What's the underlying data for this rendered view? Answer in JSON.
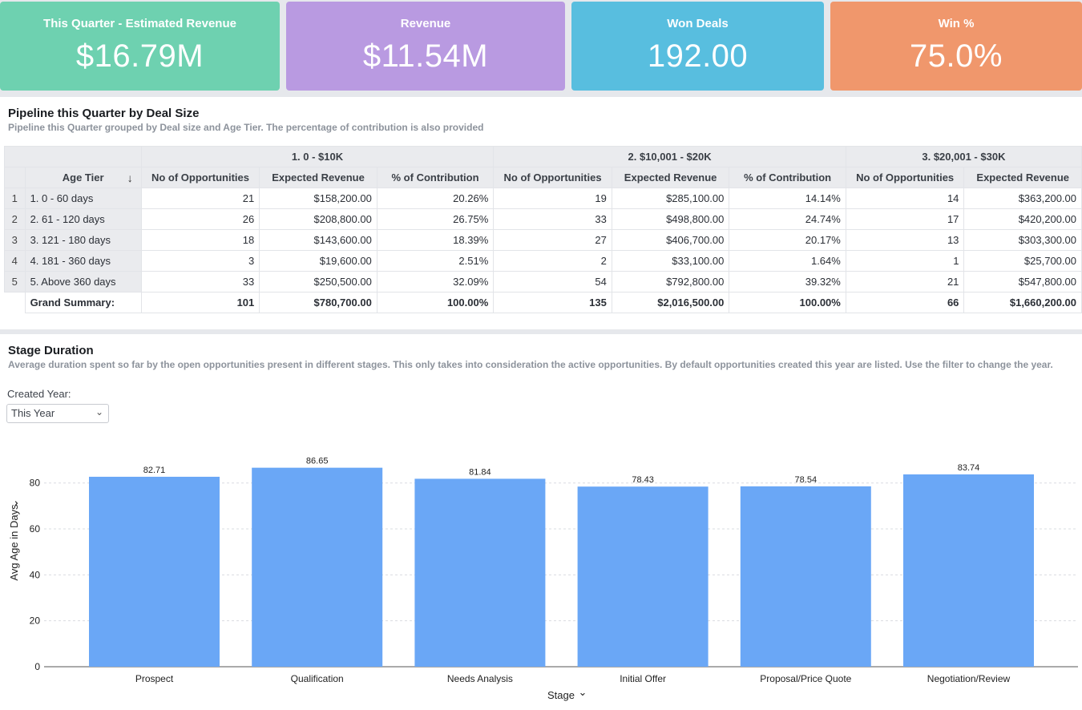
{
  "kpis": [
    {
      "label": "This Quarter - Estimated Revenue",
      "value": "$16.79M",
      "color": "#6ed1b0"
    },
    {
      "label": "Revenue",
      "value": "$11.54M",
      "color": "#b99ae1"
    },
    {
      "label": "Won Deals",
      "value": "192.00",
      "color": "#58bedf"
    },
    {
      "label": "Win %",
      "value": "75.0%",
      "color": "#f0976c"
    }
  ],
  "pipeline": {
    "title": "Pipeline this Quarter by Deal Size",
    "subtitle": "Pipeline this Quarter grouped by Deal size and Age Tier. The percentage of contribution is also provided",
    "row_header": "Age Tier",
    "groups": [
      "1. 0 - $10K",
      "2. $10,001 - $20K",
      "3. $20,001 - $30K"
    ],
    "columns": [
      "No of Opportunities",
      "Expected Revenue",
      "% of Contribution"
    ],
    "rows": [
      {
        "num": "1",
        "tier": "1. 0 - 60 days",
        "cells": [
          "21",
          "$158,200.00",
          "20.26%",
          "19",
          "$285,100.00",
          "14.14%",
          "14",
          "$363,200.00"
        ]
      },
      {
        "num": "2",
        "tier": "2. 61 - 120 days",
        "cells": [
          "26",
          "$208,800.00",
          "26.75%",
          "33",
          "$498,800.00",
          "24.74%",
          "17",
          "$420,200.00"
        ]
      },
      {
        "num": "3",
        "tier": "3. 121 - 180 days",
        "cells": [
          "18",
          "$143,600.00",
          "18.39%",
          "27",
          "$406,700.00",
          "20.17%",
          "13",
          "$303,300.00"
        ]
      },
      {
        "num": "4",
        "tier": "4. 181 - 360 days",
        "cells": [
          "3",
          "$19,600.00",
          "2.51%",
          "2",
          "$33,100.00",
          "1.64%",
          "1",
          "$25,700.00"
        ]
      },
      {
        "num": "5",
        "tier": "5. Above 360 days",
        "cells": [
          "33",
          "$250,500.00",
          "32.09%",
          "54",
          "$792,800.00",
          "39.32%",
          "21",
          "$547,800.00"
        ]
      }
    ],
    "summary": {
      "label": "Grand Summary:",
      "cells": [
        "101",
        "$780,700.00",
        "100.00%",
        "135",
        "$2,016,500.00",
        "100.00%",
        "66",
        "$1,660,200.00"
      ]
    }
  },
  "stage": {
    "title": "Stage Duration",
    "subtitle": "Average duration spent so far by the open opportunities present in different stages. This only takes into consideration the active opportunities. By default opportunities created this year are listed. Use the filter to change the year.",
    "filter_label": "Created Year:",
    "filter_value": "This Year"
  },
  "chart_data": {
    "type": "bar",
    "categories": [
      "Prospect",
      "Qualification",
      "Needs Analysis",
      "Initial Offer",
      "Proposal/Price Quote",
      "Negotiation/Review"
    ],
    "values": [
      82.71,
      86.65,
      81.84,
      78.43,
      78.54,
      83.74
    ],
    "xlabel": "Stage",
    "ylabel": "Avg Age in Days",
    "ylim": [
      0,
      100
    ],
    "yticks": [
      0,
      20,
      40,
      60,
      80
    ],
    "grid": true,
    "bar_color": "#6aa7f6"
  }
}
